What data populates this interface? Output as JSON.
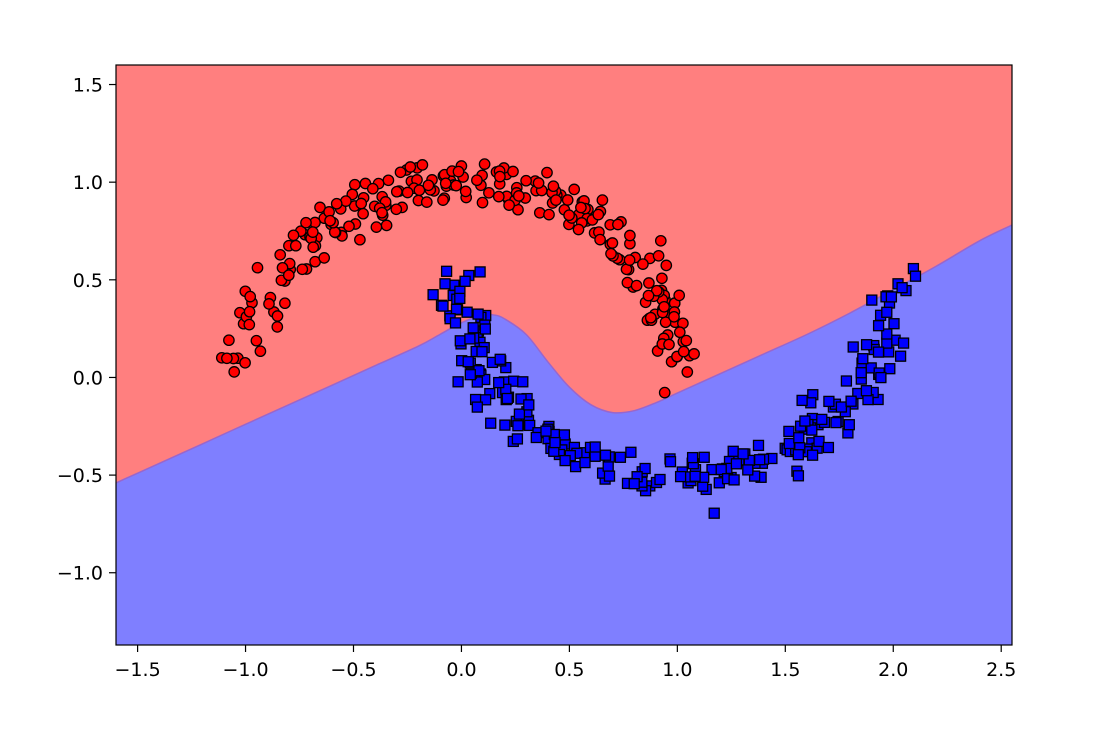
{
  "chart_data": {
    "type": "scatter",
    "title": "",
    "xlabel": "",
    "ylabel": "",
    "xlim": [
      -1.6,
      2.55
    ],
    "ylim": [
      -1.37,
      1.6
    ],
    "grid": false,
    "legend": "none",
    "x_ticks": [
      "−1.5",
      "−1.0",
      "−0.5",
      "0.0",
      "0.5",
      "1.0",
      "1.5",
      "2.0",
      "2.5"
    ],
    "x_tick_values": [
      -1.5,
      -1.0,
      -0.5,
      0.0,
      0.5,
      1.0,
      1.5,
      2.0,
      2.5
    ],
    "y_ticks": [
      "−1.0",
      "−0.5",
      "0.0",
      "0.5",
      "1.0",
      "1.5"
    ],
    "y_tick_values": [
      -1.0,
      -0.5,
      0.0,
      0.5,
      1.0,
      1.5
    ],
    "regions": [
      {
        "class": 0,
        "color": "#ff7f7f",
        "position": "above boundary"
      },
      {
        "class": 1,
        "color": "#7f7fff",
        "position": "below boundary"
      }
    ],
    "decision_boundary": {
      "color": "#9966cc",
      "x": [
        -1.6,
        -1.4,
        -1.2,
        -1.0,
        -0.8,
        -0.6,
        -0.4,
        -0.2,
        -0.1,
        0.0,
        0.1,
        0.15,
        0.2,
        0.3,
        0.4,
        0.5,
        0.6,
        0.7,
        0.8,
        0.9,
        1.0,
        1.1,
        1.2,
        1.4,
        1.6,
        1.8,
        2.0,
        2.2,
        2.4,
        2.55
      ],
      "y": [
        -0.54,
        -0.44,
        -0.34,
        -0.24,
        -0.14,
        -0.04,
        0.06,
        0.16,
        0.22,
        0.28,
        0.32,
        0.32,
        0.3,
        0.22,
        0.08,
        -0.05,
        -0.14,
        -0.18,
        -0.17,
        -0.13,
        -0.08,
        -0.03,
        0.02,
        0.12,
        0.22,
        0.33,
        0.45,
        0.57,
        0.7,
        0.78
      ]
    },
    "series": [
      {
        "class": 0,
        "marker": "circle",
        "color": "#ff0000",
        "edgecolor": "#000000",
        "shape": "upper moon",
        "count": 250,
        "center": [
          0.0,
          0.0
        ],
        "radius": 1.0,
        "noise": 0.06,
        "angle_range_deg": [
          0,
          180
        ]
      },
      {
        "class": 1,
        "marker": "square",
        "color": "#0000ff",
        "edgecolor": "#000000",
        "shape": "lower moon",
        "count": 250,
        "center": [
          1.0,
          0.5
        ],
        "radius": 1.0,
        "noise": 0.06,
        "angle_range_deg": [
          180,
          360
        ]
      }
    ]
  }
}
